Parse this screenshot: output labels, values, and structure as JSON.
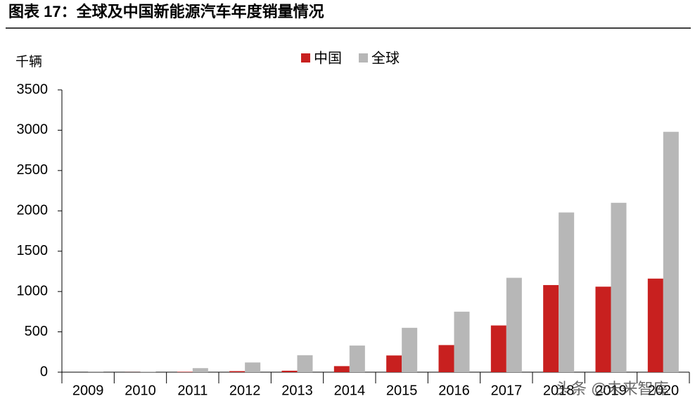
{
  "chart_data": {
    "type": "bar",
    "title": "图表 17：全球及中国新能源汽车年度销量情况",
    "y_label": "千辆",
    "categories": [
      "2009",
      "2010",
      "2011",
      "2012",
      "2013",
      "2014",
      "2015",
      "2016",
      "2017",
      "2018",
      "2019",
      "2020"
    ],
    "series": [
      {
        "name": "中国",
        "color": "#c8201f",
        "values": [
          0,
          1,
          5,
          13,
          18,
          75,
          207,
          336,
          579,
          1080,
          1060,
          1160
        ]
      },
      {
        "name": "全球",
        "color": "#b7b7b7",
        "values": [
          2,
          7,
          50,
          120,
          210,
          330,
          550,
          750,
          1170,
          1980,
          2100,
          2980
        ]
      }
    ],
    "ylim": [
      0,
      3500
    ],
    "yticks": [
      0,
      500,
      1000,
      1500,
      2000,
      2500,
      3000,
      3500
    ],
    "legend": "top",
    "watermark": "头条 @未来智库"
  }
}
